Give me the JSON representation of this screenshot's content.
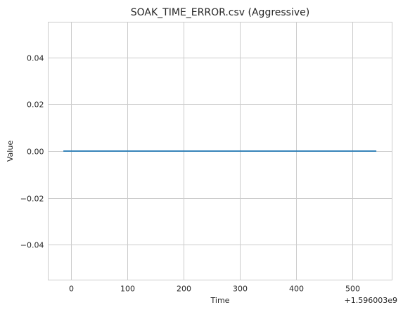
{
  "chart_data": {
    "type": "line",
    "title": "SOAK_TIME_ERROR.csv (Aggressive)",
    "xlabel": "Time",
    "ylabel": "Value",
    "x_offset_label": "+1.596003e9",
    "xlim": [
      -40,
      570
    ],
    "ylim": [
      -0.055,
      0.055
    ],
    "x_ticks": [
      0,
      100,
      200,
      300,
      400,
      500
    ],
    "x_tick_labels": [
      "0",
      "100",
      "200",
      "300",
      "400",
      "500"
    ],
    "y_ticks": [
      -0.04,
      -0.02,
      0.0,
      0.02,
      0.04
    ],
    "y_tick_labels": [
      "−0.04",
      "−0.02",
      "0.00",
      "0.02",
      "0.04"
    ],
    "grid": true,
    "series": [
      {
        "color": "#1f77b4",
        "x": [
          -13,
          542
        ],
        "y": [
          0,
          0
        ]
      }
    ]
  }
}
